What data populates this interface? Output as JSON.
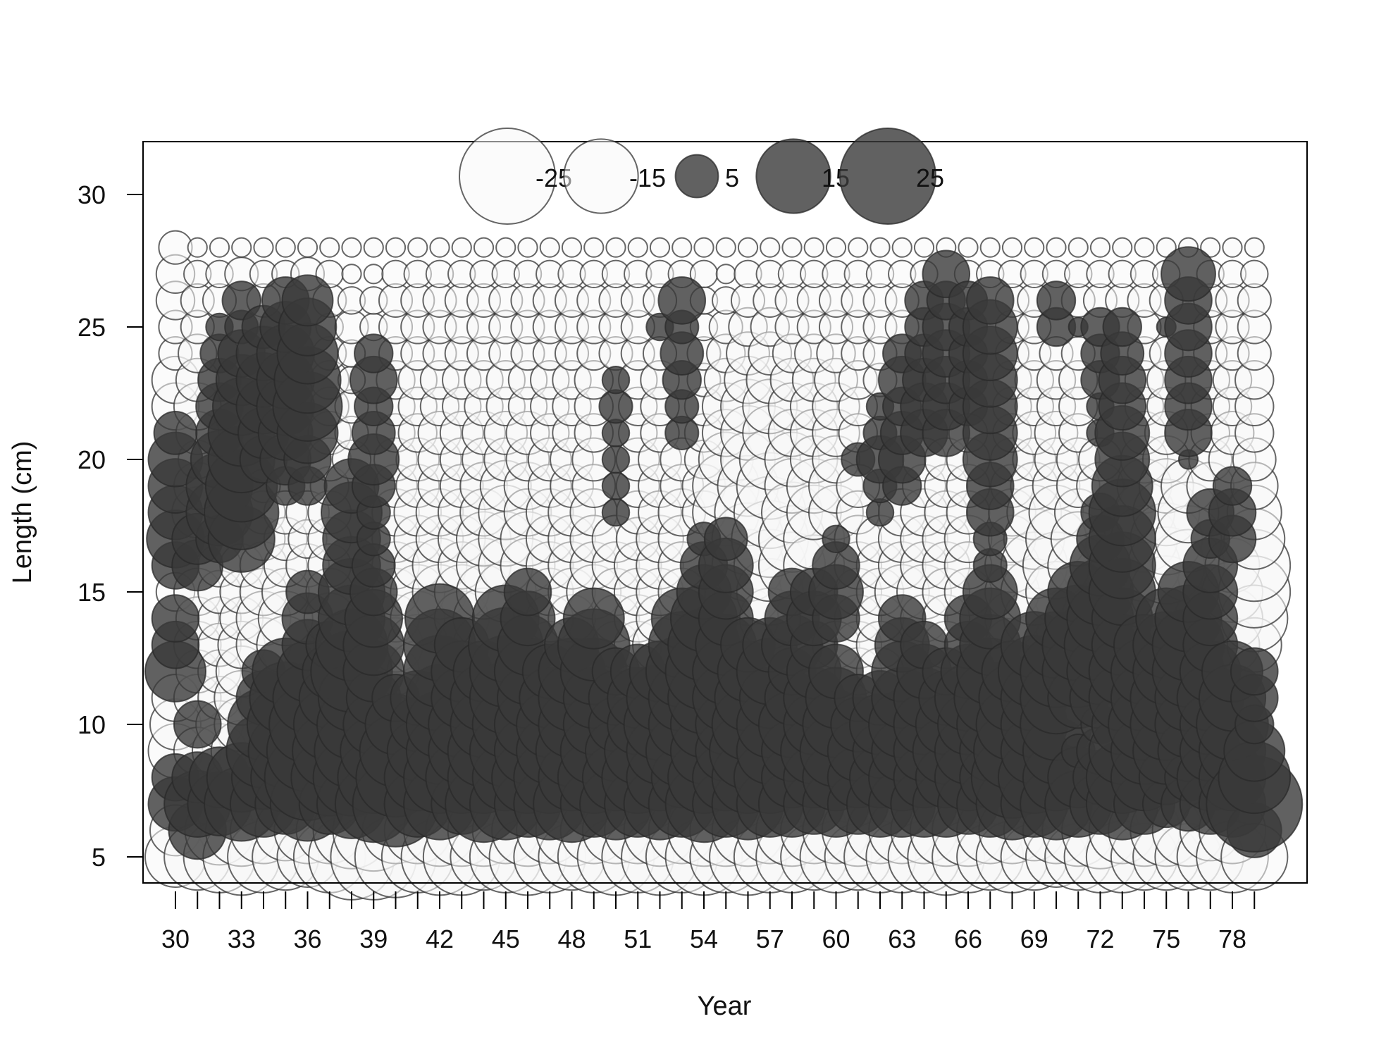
{
  "chart_data": {
    "type": "scatter",
    "subtype": "bubble-residual-plot",
    "title": "",
    "xlabel": "Year",
    "ylabel": "Length (cm)",
    "xlim": [
      29.5,
      79.5
    ],
    "ylim": [
      4,
      32
    ],
    "x_ticks": [
      30,
      31,
      32,
      33,
      34,
      35,
      36,
      37,
      38,
      39,
      40,
      41,
      42,
      43,
      44,
      45,
      46,
      47,
      48,
      49,
      50,
      51,
      52,
      53,
      54,
      55,
      56,
      57,
      58,
      59,
      60,
      61,
      62,
      63,
      64,
      65,
      66,
      67,
      68,
      69,
      70,
      71,
      72,
      73,
      74,
      75,
      76,
      77,
      78,
      79
    ],
    "x_tick_labels": [
      "30",
      "",
      "",
      "33",
      "",
      "",
      "36",
      "",
      "",
      "39",
      "",
      "",
      "42",
      "",
      "",
      "45",
      "",
      "",
      "48",
      "",
      "",
      "51",
      "",
      "",
      "54",
      "",
      "",
      "57",
      "",
      "",
      "60",
      "",
      "",
      "63",
      "",
      "",
      "66",
      "",
      "",
      "69",
      "",
      "",
      "72",
      "",
      "",
      "75",
      "",
      "",
      "78",
      ""
    ],
    "y_ticks": [
      5,
      10,
      15,
      20,
      25,
      30
    ],
    "y_tick_labels": [
      "5",
      "10",
      "15",
      "20",
      "25",
      "30"
    ],
    "years": [
      30,
      31,
      32,
      33,
      34,
      35,
      36,
      37,
      38,
      39,
      40,
      41,
      42,
      43,
      44,
      45,
      46,
      47,
      48,
      49,
      50,
      51,
      52,
      53,
      54,
      55,
      56,
      57,
      58,
      59,
      60,
      61,
      62,
      63,
      64,
      65,
      66,
      67,
      68,
      69,
      70,
      71,
      72,
      73,
      74,
      75,
      76,
      77,
      78,
      79
    ],
    "lengths": [
      5,
      6,
      7,
      8,
      9,
      10,
      11,
      12,
      13,
      14,
      15,
      16,
      17,
      18,
      19,
      20,
      21,
      22,
      23,
      24,
      25,
      26,
      27,
      28
    ],
    "max_abs_residual": 25,
    "legend": {
      "placement": "top-center",
      "values": [
        -25,
        -15,
        5,
        15,
        25
      ],
      "labels": [
        "-25",
        "-15",
        "5",
        "15",
        "25"
      ]
    },
    "positive_fill": "#3a3a3a",
    "negative_fill": "#f7f7f7",
    "residuals": [
      [
        -10,
        -7,
        8,
        6,
        -8,
        -7,
        -6,
        10,
        6,
        6,
        -4,
        6,
        9,
        8,
        8,
        8,
        5,
        -6,
        -6,
        -3,
        -3,
        -4,
        -4,
        -3
      ],
      [
        -12,
        9,
        12,
        7,
        -6,
        6,
        -6,
        -5,
        -6,
        -5,
        -6,
        7,
        7,
        -7,
        -6,
        -4,
        -5,
        -6,
        -5,
        -4,
        -3,
        -3,
        -2,
        -1
      ],
      [
        -14,
        -13,
        11,
        10,
        -8,
        -6,
        -5,
        -5,
        -5,
        -5,
        -5,
        -5,
        6,
        12,
        12,
        9,
        6,
        6,
        5,
        4,
        2,
        -3,
        -2,
        -1
      ],
      [
        -16,
        -14,
        15,
        13,
        -10,
        -8,
        -8,
        -7,
        -6,
        -5,
        -5,
        -5,
        12,
        15,
        14,
        12,
        12,
        9,
        7,
        6,
        3,
        4,
        -3,
        -1
      ],
      [
        -14,
        -12,
        12,
        11,
        15,
        14,
        8,
        5,
        -8,
        -8,
        -6,
        -6,
        -5,
        -5,
        -3,
        6,
        7,
        8,
        8,
        8,
        5,
        -3,
        -2,
        -1
      ],
      [
        -12,
        -10,
        10,
        13,
        15,
        16,
        14,
        12,
        -9,
        -8,
        -6,
        -5,
        -5,
        -5,
        4,
        7,
        8,
        9,
        9,
        9,
        7,
        6,
        -2,
        -1
      ],
      [
        -10,
        -12,
        15,
        20,
        18,
        16,
        13,
        10,
        7,
        7,
        5,
        -5,
        -4,
        -5,
        4,
        6,
        10,
        13,
        12,
        10,
        9,
        7,
        -3,
        -1
      ],
      [
        -14,
        -12,
        10,
        16,
        15,
        14,
        10,
        8,
        6,
        -7,
        -6,
        -5,
        -5,
        -5,
        -4,
        -5,
        -5,
        -4,
        -4,
        -3,
        -2,
        -3,
        -2,
        -1
      ],
      [
        -20,
        -16,
        13,
        16,
        15,
        13,
        12,
        18,
        14,
        12,
        12,
        9,
        9,
        10,
        8,
        -4,
        -3,
        -3,
        -2,
        -2,
        -3,
        -2,
        -1,
        -1
      ],
      [
        -20,
        -18,
        16,
        14,
        12,
        10,
        8,
        10,
        10,
        9,
        6,
        5,
        3,
        3,
        5,
        7,
        5,
        4,
        6,
        4,
        -2,
        -2,
        -1,
        -1
      ],
      [
        -18,
        -12,
        20,
        17,
        14,
        10,
        6,
        -6,
        -8,
        -6,
        -6,
        -6,
        -6,
        -6,
        -5,
        -5,
        -4,
        -4,
        -4,
        -3,
        -3,
        -3,
        -2,
        -1
      ],
      [
        -14,
        -12,
        12,
        12,
        10,
        8,
        8,
        -10,
        -10,
        -8,
        -8,
        -6,
        -6,
        -6,
        -5,
        -5,
        -4,
        -4,
        -4,
        -3,
        -3,
        -3,
        -2,
        -1
      ],
      [
        -16,
        -14,
        14,
        14,
        12,
        12,
        12,
        14,
        14,
        13,
        -8,
        -8,
        -6,
        -6,
        -5,
        -5,
        -5,
        -4,
        -4,
        -3,
        -3,
        -3,
        -2,
        -1
      ],
      [
        -16,
        -14,
        10,
        14,
        12,
        12,
        10,
        10,
        8,
        -8,
        -8,
        -6,
        -6,
        -6,
        -5,
        -5,
        -5,
        -4,
        -4,
        -3,
        -3,
        -3,
        -2,
        -1
      ],
      [
        -12,
        -14,
        16,
        14,
        14,
        12,
        12,
        10,
        -10,
        -10,
        -8,
        -8,
        -8,
        -6,
        -6,
        -5,
        -5,
        -4,
        -4,
        -3,
        -3,
        -3,
        -2,
        -1
      ],
      [
        -14,
        -12,
        14,
        12,
        14,
        12,
        14,
        14,
        15,
        12,
        -10,
        -8,
        -8,
        -8,
        -7,
        -5,
        -5,
        -4,
        -4,
        -3,
        -3,
        -3,
        -2,
        -1
      ],
      [
        -16,
        -14,
        12,
        14,
        12,
        12,
        10,
        12,
        10,
        8,
        6,
        -8,
        -8,
        -6,
        -6,
        -5,
        -5,
        -4,
        -4,
        -3,
        -3,
        -3,
        -2,
        -1
      ],
      [
        -14,
        -12,
        14,
        14,
        12,
        12,
        10,
        8,
        -6,
        -6,
        -6,
        -6,
        -6,
        -6,
        -5,
        -5,
        -4,
        -4,
        -4,
        -3,
        -3,
        -3,
        -2,
        -1
      ],
      [
        -12,
        -14,
        16,
        12,
        14,
        12,
        12,
        12,
        8,
        -6,
        -6,
        -6,
        -6,
        -6,
        -5,
        -5,
        -4,
        -4,
        -4,
        -3,
        -3,
        -3,
        -2,
        -1
      ],
      [
        -14,
        -12,
        12,
        14,
        12,
        10,
        10,
        12,
        14,
        10,
        -8,
        -6,
        -6,
        -6,
        -5,
        -5,
        -4,
        -4,
        -4,
        -3,
        -3,
        -3,
        -2,
        -1
      ],
      [
        -16,
        -12,
        14,
        12,
        10,
        8,
        8,
        6,
        -6,
        -6,
        -6,
        -6,
        -6,
        2,
        2,
        2,
        2,
        3,
        2,
        -3,
        -3,
        -3,
        -2,
        -1
      ],
      [
        -14,
        -12,
        12,
        14,
        12,
        10,
        10,
        8,
        -6,
        -6,
        -6,
        -6,
        -5,
        -5,
        -5,
        -5,
        -4,
        -4,
        -4,
        -3,
        -3,
        -3,
        -2,
        -1
      ],
      [
        -16,
        -14,
        14,
        12,
        12,
        14,
        12,
        10,
        -8,
        -6,
        -6,
        -6,
        -6,
        -5,
        -5,
        -5,
        -4,
        -4,
        -4,
        -3,
        2,
        -3,
        -2,
        -1
      ],
      [
        -14,
        -12,
        12,
        10,
        14,
        12,
        12,
        14,
        12,
        10,
        -6,
        -6,
        -6,
        -6,
        -5,
        -5,
        3,
        3,
        4,
        5,
        3,
        6,
        -2,
        -1
      ],
      [
        -16,
        -14,
        16,
        14,
        12,
        12,
        14,
        16,
        14,
        12,
        8,
        6,
        3,
        -5,
        -5,
        -4,
        -4,
        -4,
        -3,
        -3,
        -2,
        -2,
        -2,
        -1
      ],
      [
        -14,
        -14,
        12,
        12,
        10,
        10,
        12,
        12,
        10,
        8,
        8,
        8,
        5,
        -12,
        -12,
        -8,
        -6,
        -6,
        -5,
        -4,
        -3,
        -2,
        -1,
        -1
      ],
      [
        -16,
        -14,
        14,
        14,
        16,
        14,
        12,
        10,
        8,
        -10,
        -12,
        -14,
        -14,
        -12,
        -10,
        -8,
        -8,
        -8,
        -6,
        -5,
        -4,
        -3,
        -2,
        -1
      ],
      [
        -14,
        -12,
        12,
        14,
        12,
        12,
        10,
        12,
        8,
        -10,
        -12,
        -14,
        -16,
        -14,
        -12,
        -10,
        -8,
        -8,
        -6,
        -5,
        -4,
        -3,
        -2,
        -1
      ],
      [
        -14,
        -14,
        12,
        10,
        10,
        12,
        8,
        6,
        10,
        8,
        6,
        -12,
        -12,
        -10,
        -8,
        -8,
        -6,
        -6,
        -5,
        -4,
        -3,
        -3,
        -2,
        -1
      ],
      [
        -12,
        -12,
        10,
        10,
        12,
        10,
        10,
        8,
        6,
        8,
        6,
        -10,
        -10,
        -8,
        -8,
        -6,
        -6,
        -6,
        -5,
        -4,
        -3,
        -3,
        -2,
        -1
      ],
      [
        -14,
        -12,
        12,
        12,
        14,
        12,
        10,
        8,
        -6,
        6,
        8,
        6,
        2,
        -8,
        -8,
        -6,
        -6,
        -6,
        -5,
        -4,
        -3,
        -3,
        -2,
        -1
      ],
      [
        -12,
        -14,
        10,
        10,
        10,
        8,
        6,
        -6,
        -6,
        -6,
        -6,
        -6,
        -6,
        -5,
        -5,
        3,
        -4,
        -4,
        -4,
        -3,
        -3,
        -3,
        -2,
        -1
      ],
      [
        -14,
        -12,
        12,
        10,
        8,
        10,
        8,
        -6,
        -6,
        -6,
        -6,
        -6,
        -6,
        2,
        3,
        6,
        3,
        2,
        -3,
        -3,
        -3,
        -3,
        -2,
        -1
      ],
      [
        -14,
        -12,
        12,
        12,
        10,
        12,
        10,
        10,
        8,
        6,
        -8,
        -6,
        -6,
        -6,
        4,
        6,
        5,
        4,
        6,
        4,
        -3,
        -3,
        -2,
        -1
      ],
      [
        -14,
        -12,
        12,
        10,
        10,
        10,
        10,
        8,
        6,
        -6,
        -8,
        -6,
        -6,
        -6,
        -5,
        -5,
        6,
        6,
        5,
        4,
        4,
        4,
        -2,
        -1
      ],
      [
        -16,
        -14,
        12,
        10,
        12,
        10,
        8,
        6,
        -6,
        -6,
        -6,
        -6,
        -6,
        -5,
        -5,
        -5,
        6,
        6,
        6,
        6,
        6,
        4,
        6,
        -1
      ],
      [
        -14,
        -14,
        10,
        12,
        12,
        10,
        12,
        8,
        6,
        6,
        -6,
        -6,
        -6,
        -5,
        -5,
        -5,
        -4,
        4,
        4,
        4,
        4,
        4,
        -2,
        -1
      ],
      [
        -12,
        -12,
        12,
        10,
        10,
        12,
        14,
        12,
        10,
        10,
        8,
        3,
        3,
        6,
        6,
        8,
        8,
        8,
        8,
        8,
        8,
        6,
        -2,
        -1
      ],
      [
        -14,
        -12,
        14,
        18,
        16,
        14,
        12,
        10,
        -8,
        -8,
        -8,
        -8,
        -6,
        -6,
        -5,
        -5,
        -4,
        -4,
        -4,
        -3,
        -3,
        -3,
        -2,
        -1
      ],
      [
        -12,
        -10,
        12,
        14,
        12,
        12,
        12,
        14,
        12,
        -10,
        -12,
        -12,
        -10,
        -8,
        -6,
        -5,
        -5,
        -4,
        -4,
        -3,
        -3,
        -3,
        -2,
        -1
      ],
      [
        -10,
        -12,
        14,
        12,
        12,
        14,
        14,
        14,
        12,
        10,
        -10,
        -12,
        -10,
        -8,
        -6,
        -5,
        -5,
        -4,
        -4,
        -3,
        4,
        4,
        -2,
        -1
      ],
      [
        -12,
        -14,
        12,
        10,
        3,
        -6,
        10,
        14,
        14,
        12,
        10,
        -10,
        -8,
        -6,
        -5,
        -5,
        -4,
        -4,
        -4,
        -3,
        1,
        -3,
        -2,
        -1
      ],
      [
        -14,
        -16,
        10,
        8,
        6,
        4,
        10,
        12,
        14,
        12,
        12,
        10,
        6,
        4,
        -6,
        -5,
        2,
        2,
        4,
        4,
        4,
        -3,
        -2,
        -1
      ],
      [
        -14,
        -12,
        14,
        14,
        12,
        10,
        12,
        12,
        10,
        10,
        12,
        12,
        12,
        12,
        10,
        8,
        8,
        6,
        6,
        5,
        4,
        -3,
        -2,
        -1
      ],
      [
        -12,
        -14,
        10,
        12,
        12,
        14,
        12,
        12,
        10,
        -12,
        -14,
        -14,
        -12,
        -10,
        -8,
        -6,
        -5,
        -4,
        -4,
        -3,
        -3,
        -3,
        -2,
        -1
      ],
      [
        -12,
        -14,
        6,
        8,
        12,
        14,
        14,
        12,
        12,
        10,
        -14,
        -16,
        -14,
        -12,
        -8,
        -6,
        -5,
        -4,
        -4,
        -3,
        1,
        -3,
        -2,
        -1
      ],
      [
        -12,
        -14,
        8,
        6,
        10,
        12,
        12,
        14,
        14,
        12,
        10,
        -14,
        -12,
        -10,
        -8,
        1,
        6,
        6,
        6,
        6,
        6,
        6,
        8,
        -1
      ],
      [
        -12,
        -10,
        10,
        12,
        10,
        10,
        12,
        10,
        8,
        8,
        8,
        8,
        4,
        6,
        -6,
        -5,
        -4,
        -4,
        -4,
        -3,
        -3,
        -3,
        -2,
        -1
      ],
      [
        -14,
        -12,
        12,
        12,
        12,
        14,
        12,
        10,
        -8,
        -10,
        -10,
        -8,
        6,
        6,
        4,
        -6,
        -5,
        -4,
        -4,
        -3,
        -3,
        -3,
        -2,
        -1
      ],
      [
        -12,
        8,
        25,
        14,
        10,
        4,
        6,
        6,
        -8,
        -12,
        -14,
        -14,
        -10,
        -8,
        -6,
        -5,
        -4,
        -4,
        -4,
        -3,
        -3,
        -3,
        -2,
        -1
      ]
    ]
  }
}
